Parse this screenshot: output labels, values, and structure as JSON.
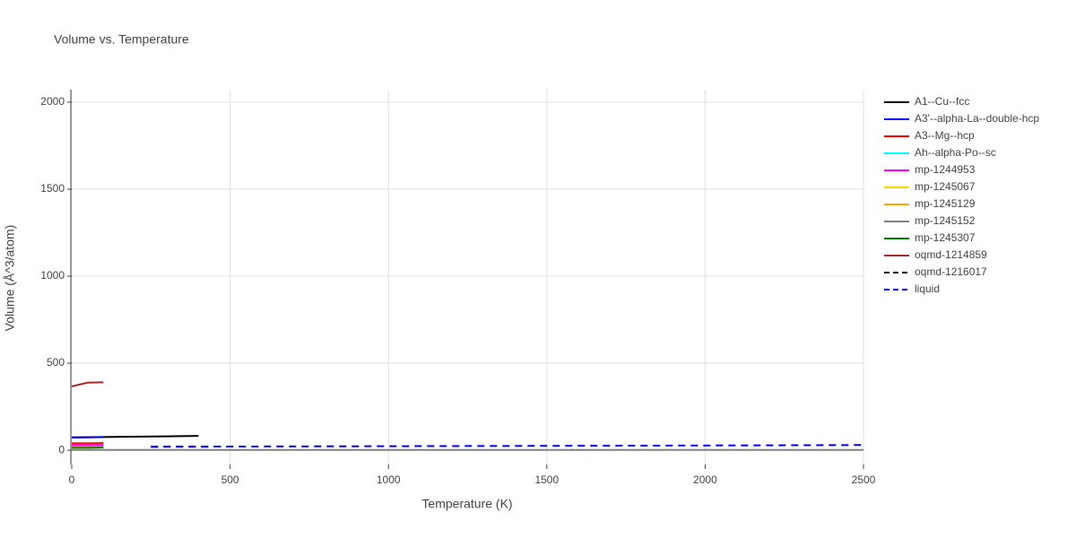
{
  "chart_data": {
    "type": "line",
    "title": "Volume vs. Temperature",
    "x_label": "Temperature (K)",
    "y_label": "Volume (Å^3/atom)",
    "xlim": [
      0,
      2500
    ],
    "ylim": [
      -82,
      2072
    ],
    "xticks": [
      0,
      500,
      1000,
      1500,
      2000,
      2500
    ],
    "yticks": [
      0,
      500,
      1000,
      1500,
      2000
    ],
    "grid": true,
    "series": [
      {
        "name": "A1--Cu--fcc",
        "color": "#000000",
        "dash": "solid",
        "x": [
          0,
          100,
          200,
          300,
          400
        ],
        "values": [
          74,
          76,
          78,
          80,
          82
        ]
      },
      {
        "name": "A3'--alpha-La--double-hcp",
        "color": "#0000ff",
        "dash": "solid",
        "x": [
          0,
          50,
          100
        ],
        "values": [
          73,
          74,
          75
        ]
      },
      {
        "name": "A3--Mg--hcp",
        "color": "#ff0000",
        "dash": "solid",
        "x": [
          0,
          50,
          100
        ],
        "values": [
          40,
          40,
          41
        ]
      },
      {
        "name": "Ah--alpha-Po--sc",
        "color": "#00ffff",
        "dash": "solid",
        "x": [
          0,
          50,
          100
        ],
        "values": [
          22,
          22,
          23
        ]
      },
      {
        "name": "mp-1244953",
        "color": "#ff00ff",
        "dash": "solid",
        "x": [
          0,
          50,
          100
        ],
        "values": [
          28,
          28,
          29
        ]
      },
      {
        "name": "mp-1245067",
        "color": "#ffd700",
        "dash": "solid",
        "x": [
          0,
          50,
          100
        ],
        "values": [
          18,
          18,
          19
        ]
      },
      {
        "name": "mp-1245129",
        "color": "#ffa500",
        "dash": "solid",
        "x": [
          0,
          50,
          100
        ],
        "values": [
          16,
          16,
          17
        ]
      },
      {
        "name": "mp-1245152",
        "color": "#808080",
        "dash": "solid",
        "x": [
          0,
          2500
        ],
        "values": [
          2,
          2
        ]
      },
      {
        "name": "mp-1245307",
        "color": "#008000",
        "dash": "solid",
        "x": [
          0,
          50,
          100
        ],
        "values": [
          14,
          14,
          15
        ]
      },
      {
        "name": "oqmd-1214859",
        "color": "#a52a2a",
        "dash": "solid",
        "x": [
          0,
          50,
          100
        ],
        "values": [
          367,
          388,
          390
        ]
      },
      {
        "name": "oqmd-1216017",
        "color": "#000000",
        "dash": "dash",
        "x": [
          250,
          500
        ],
        "values": [
          20,
          21
        ]
      },
      {
        "name": "liquid",
        "color": "#0000ff",
        "dash": "dash",
        "x": [
          250,
          1000,
          1500,
          2000,
          2500
        ],
        "values": [
          20,
          23,
          25,
          27,
          30
        ]
      }
    ]
  }
}
